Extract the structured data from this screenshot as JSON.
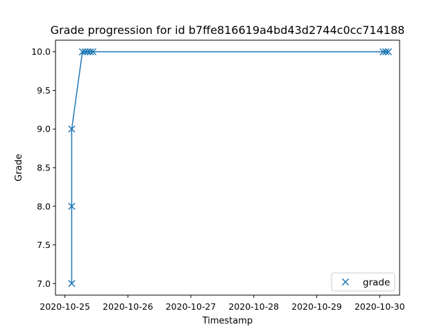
{
  "chart_data": {
    "type": "line",
    "title": "Grade progression for id b7ffe816619a4bd43d2744c0cc714188",
    "xlabel": "Timestamp",
    "ylabel": "Grade",
    "x_tick_labels": [
      "2020-10-25",
      "2020-10-26",
      "2020-10-27",
      "2020-10-28",
      "2020-10-29",
      "2020-10-30"
    ],
    "x_ticks": [
      "2020-10-25 00:00",
      "2020-10-26 00:00",
      "2020-10-27 00:00",
      "2020-10-28 00:00",
      "2020-10-29 00:00",
      "2020-10-30 00:00"
    ],
    "y_tick_labels": [
      "7.0",
      "7.5",
      "8.0",
      "8.5",
      "9.0",
      "9.5",
      "10.0"
    ],
    "y_ticks": [
      7.0,
      7.5,
      8.0,
      8.5,
      9.0,
      9.5,
      10.0
    ],
    "xlim": [
      "2020-10-24 20:24",
      "2020-10-30 07:36"
    ],
    "ylim": [
      6.85,
      10.15
    ],
    "grid": false,
    "legend_position": "lower-right",
    "color": "#1f77b4",
    "marker": "x",
    "series": [
      {
        "name": "grade",
        "points": [
          {
            "x": "2020-10-25 02:35",
            "y": 7.0
          },
          {
            "x": "2020-10-25 02:35",
            "y": 8.0
          },
          {
            "x": "2020-10-25 02:35",
            "y": 9.0
          },
          {
            "x": "2020-10-25 06:40",
            "y": 10.0
          },
          {
            "x": "2020-10-25 07:40",
            "y": 10.0
          },
          {
            "x": "2020-10-25 08:40",
            "y": 10.0
          },
          {
            "x": "2020-10-25 09:40",
            "y": 10.0
          },
          {
            "x": "2020-10-25 10:40",
            "y": 10.0
          },
          {
            "x": "2020-10-30 01:20",
            "y": 10.0
          },
          {
            "x": "2020-10-30 02:20",
            "y": 10.0
          },
          {
            "x": "2020-10-30 03:20",
            "y": 10.0
          }
        ]
      }
    ]
  }
}
